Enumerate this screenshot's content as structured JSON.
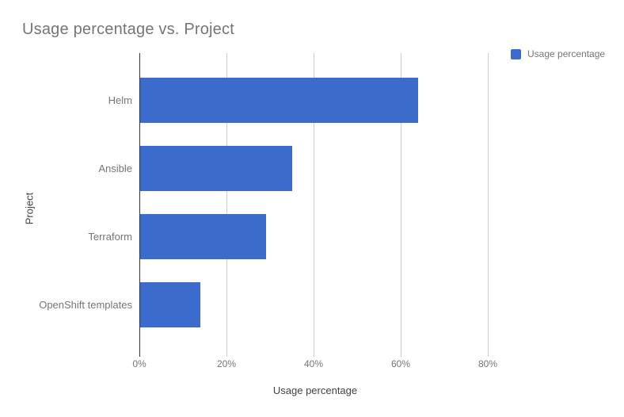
{
  "chart_data": {
    "type": "bar",
    "orientation": "horizontal",
    "title": "Usage percentage vs. Project",
    "series_name": "Usage percentage",
    "categories": [
      "Helm",
      "Ansible",
      "Terraform",
      "OpenShift templates"
    ],
    "values": [
      64,
      35,
      29,
      14
    ],
    "value_unit": "%",
    "xlabel": "Usage percentage",
    "ylabel": "Project",
    "xlim": [
      0,
      80
    ],
    "x_ticks": [
      {
        "value": 0,
        "label": "0%"
      },
      {
        "value": 20,
        "label": "20%"
      },
      {
        "value": 40,
        "label": "40%"
      },
      {
        "value": 60,
        "label": "60%"
      },
      {
        "value": 80,
        "label": "80%"
      }
    ],
    "grid": true,
    "legend_position": "top-right",
    "colors": {
      "bar": "#3b6ccd",
      "gridline": "#cccccc",
      "baseline": "#333333",
      "title_text": "#757575",
      "tick_text": "#757575",
      "axis_title_text": "#424242"
    }
  }
}
